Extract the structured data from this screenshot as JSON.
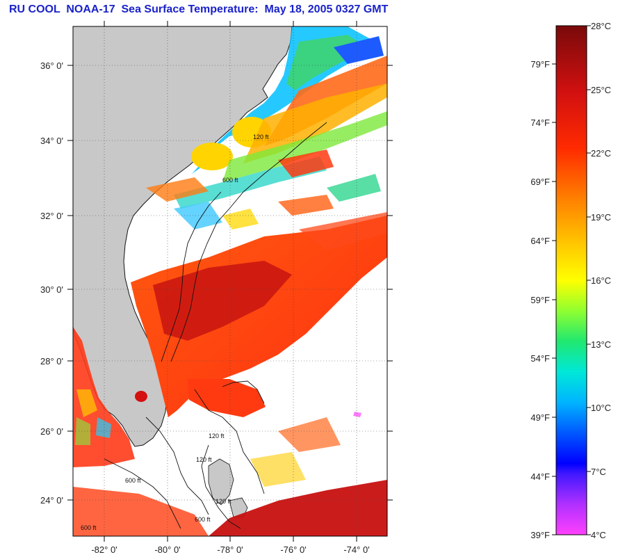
{
  "title": "RU COOL  NOAA-17  Sea Surface Temperature:  May 18, 2005 0327 GMT",
  "map": {
    "lat_labels": [
      "36° 0'",
      "34° 0'",
      "32° 0'",
      "30° 0'",
      "28° 0'",
      "26° 0'",
      "24° 0'"
    ],
    "lon_labels": [
      "-82° 0'",
      "-80° 0'",
      "-78° 0'",
      "-76° 0'",
      "-74° 0'"
    ],
    "contour_labels": [
      "120 ft",
      "600 ft",
      "120 ft",
      "600 ft",
      "120 ft",
      "600 ft",
      "120 ft",
      "600 ft"
    ],
    "colors": {
      "land": "#c8c8c8",
      "warm": "#e8261a",
      "hot": "#b50d0d",
      "cloud": "#ffffff"
    }
  },
  "colorbar": {
    "celsius": [
      "28°C",
      "25°C",
      "22°C",
      "19°C",
      "16°C",
      "13°C",
      "10°C",
      "7°C",
      "4°C"
    ],
    "fahrenheit": [
      "79°F",
      "74°F",
      "69°F",
      "64°F",
      "59°F",
      "54°F",
      "49°F",
      "44°F",
      "39°F"
    ],
    "gradient": [
      "#7a0a0a",
      "#d11010",
      "#ff2a00",
      "#ff7a00",
      "#ffc800",
      "#ffff00",
      "#7dff30",
      "#00e070",
      "#00e8d8",
      "#00b0ff",
      "#0050ff",
      "#0000ff",
      "#0000ff",
      "#8020ff",
      "#ff40ff"
    ]
  }
}
